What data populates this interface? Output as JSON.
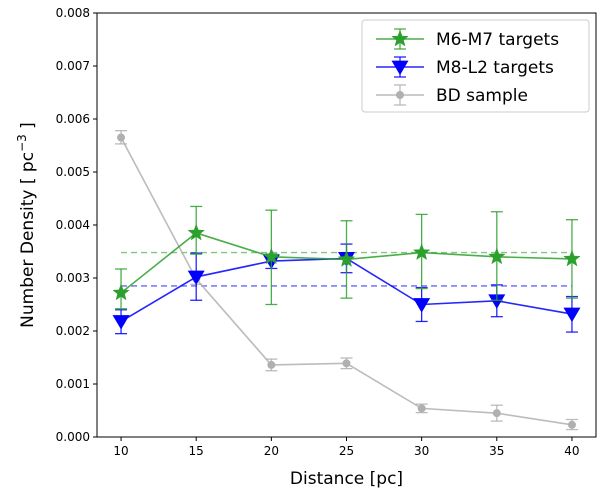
{
  "chart_data": {
    "type": "line",
    "xlabel": "Distance [pc]",
    "ylabel_main": "Number Density [ pc",
    "ylabel_sup": "−3",
    "ylabel_end": " ]",
    "xlim": [
      8.4,
      41.6
    ],
    "ylim": [
      0,
      0.008
    ],
    "xticks": [
      10,
      15,
      20,
      25,
      30,
      35,
      40
    ],
    "yticks": [
      0.0,
      0.001,
      0.002,
      0.003,
      0.004,
      0.005,
      0.006,
      0.007,
      0.008
    ],
    "ytick_labels": [
      "0.000",
      "0.001",
      "0.002",
      "0.003",
      "0.004",
      "0.005",
      "0.006",
      "0.007",
      "0.008"
    ],
    "legend_position": "upper right",
    "grid": false,
    "series": [
      {
        "name": "M6-M7 targets",
        "color": "#2ca02c",
        "marker": "star",
        "x": [
          10,
          15,
          20,
          25,
          30,
          35,
          40
        ],
        "y": [
          0.00272,
          0.00385,
          0.0034,
          0.00335,
          0.00348,
          0.0034,
          0.00336
        ],
        "yerr_low": [
          0.00242,
          0.00345,
          0.0025,
          0.00262,
          0.0028,
          0.00258,
          0.00262
        ],
        "yerr_high": [
          0.00317,
          0.00435,
          0.00428,
          0.00408,
          0.0042,
          0.00425,
          0.0041
        ],
        "mean": 0.00348
      },
      {
        "name": "M8-L2 targets",
        "color": "#0000ff",
        "marker": "triangle-down",
        "x": [
          10,
          15,
          20,
          25,
          30,
          35,
          40
        ],
        "y": [
          0.00218,
          0.00302,
          0.00332,
          0.00337,
          0.0025,
          0.00257,
          0.00232
        ],
        "yerr_low": [
          0.00195,
          0.00258,
          0.00318,
          0.0031,
          0.00218,
          0.00227,
          0.00198
        ],
        "yerr_high": [
          0.0024,
          0.00347,
          0.00345,
          0.00364,
          0.00282,
          0.00287,
          0.00265
        ],
        "mean": 0.00285
      },
      {
        "name": "BD sample",
        "color": "#b0b0b0",
        "marker": "circle",
        "x": [
          10,
          15,
          20,
          25,
          30,
          35,
          40
        ],
        "y": [
          0.00565,
          0.00298,
          0.00136,
          0.00139,
          0.00054,
          0.00045,
          0.00023
        ],
        "yerr_low": [
          0.00553,
          0.00288,
          0.00125,
          0.00129,
          0.00046,
          0.0003,
          0.00014
        ],
        "yerr_high": [
          0.00578,
          0.00309,
          0.00147,
          0.00149,
          0.00062,
          0.0006,
          0.00033
        ]
      }
    ]
  }
}
